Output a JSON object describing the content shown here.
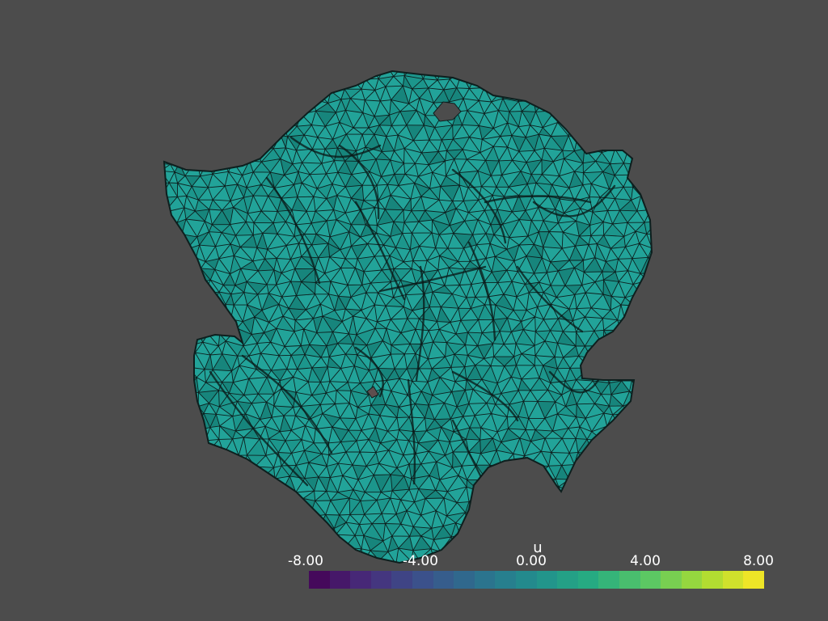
{
  "scalar_bar": {
    "title": "u",
    "tick_labels": [
      "-8.00",
      "-4.00",
      "0.00",
      "4.00",
      "8.00"
    ],
    "range": [
      -8,
      8
    ],
    "colormap": "viridis",
    "n_colors": 22
  },
  "mesh": {
    "representation": "surface with edges",
    "surface_color": "#22a399",
    "edge_color": "#0d1f1e"
  },
  "background_color": "#4c4c4c"
}
